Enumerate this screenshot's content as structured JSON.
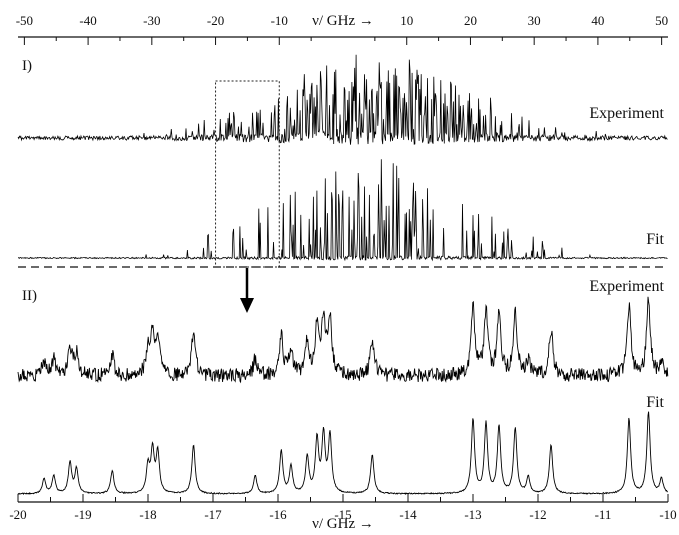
{
  "chart_data": [
    {
      "type": "line",
      "panel_label": "I)",
      "xlabel": "ν/ GHz →",
      "xlim": [
        -51,
        51
      ],
      "ticks": [
        -50,
        -40,
        -30,
        -20,
        -10,
        10,
        20,
        30,
        40,
        50
      ],
      "series": [
        {
          "name": "Experiment"
        },
        {
          "name": "Fit"
        }
      ],
      "zoom_region": [
        -20,
        -10
      ]
    },
    {
      "type": "line",
      "panel_label": "II)",
      "xlabel": "ν/ GHz →",
      "xlim": [
        -20,
        -10
      ],
      "ticks": [
        -20,
        -19,
        -18,
        -17,
        -16,
        -15,
        -14,
        -13,
        -12,
        -11,
        -10
      ],
      "series": [
        {
          "name": "Experiment"
        },
        {
          "name": "Fit"
        }
      ],
      "peaks": [
        {
          "x": -19.6,
          "h": 0.18
        },
        {
          "x": -19.45,
          "h": 0.22
        },
        {
          "x": -19.2,
          "h": 0.38
        },
        {
          "x": -19.1,
          "h": 0.3
        },
        {
          "x": -18.55,
          "h": 0.28
        },
        {
          "x": -18.0,
          "h": 0.33
        },
        {
          "x": -17.93,
          "h": 0.52
        },
        {
          "x": -17.85,
          "h": 0.5
        },
        {
          "x": -17.3,
          "h": 0.6
        },
        {
          "x": -16.35,
          "h": 0.22
        },
        {
          "x": -15.95,
          "h": 0.52
        },
        {
          "x": -15.8,
          "h": 0.33
        },
        {
          "x": -15.55,
          "h": 0.45
        },
        {
          "x": -15.4,
          "h": 0.65
        },
        {
          "x": -15.3,
          "h": 0.7
        },
        {
          "x": -15.2,
          "h": 0.7
        },
        {
          "x": -14.55,
          "h": 0.48
        },
        {
          "x": -13.0,
          "h": 0.9
        },
        {
          "x": -12.8,
          "h": 0.85
        },
        {
          "x": -12.6,
          "h": 0.82
        },
        {
          "x": -12.35,
          "h": 0.8
        },
        {
          "x": -12.15,
          "h": 0.2
        },
        {
          "x": -11.8,
          "h": 0.6
        },
        {
          "x": -10.6,
          "h": 0.92
        },
        {
          "x": -10.3,
          "h": 1.0
        },
        {
          "x": -10.1,
          "h": 0.18
        }
      ]
    }
  ]
}
